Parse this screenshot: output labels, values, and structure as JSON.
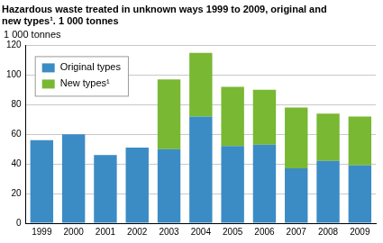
{
  "chart_data": {
    "type": "bar",
    "title": [
      "Hazardous waste treated in unknown ways 1999 to 2009, original and",
      "new types¹. 1 000 tonnes"
    ],
    "y_label": "1 000 tonnes",
    "categories": [
      "1999",
      "2000",
      "2001",
      "2002",
      "2003",
      "2004",
      "2005",
      "2006",
      "2007",
      "2008",
      "2009"
    ],
    "series": [
      {
        "name": "Original types",
        "color": "#3b8cc4",
        "values": [
          56,
          60,
          46,
          51,
          50,
          72,
          52,
          53,
          37,
          42,
          39
        ]
      },
      {
        "name": "New types¹",
        "color": "#79b832",
        "values": [
          0,
          0,
          0,
          0,
          47,
          43,
          40,
          37,
          41,
          32,
          33
        ]
      }
    ],
    "stacked": true,
    "ylim": [
      0,
      120
    ],
    "yticks": [
      0,
      20,
      40,
      60,
      80,
      100,
      120
    ],
    "grid": true,
    "legend": "upper left"
  }
}
